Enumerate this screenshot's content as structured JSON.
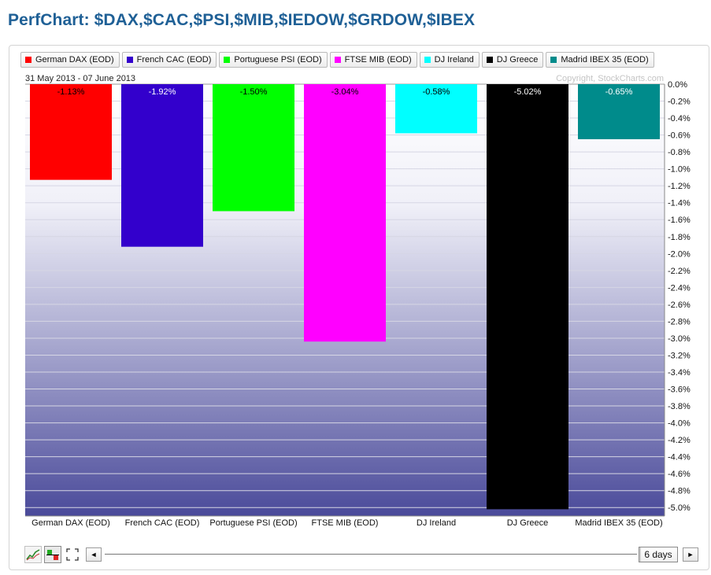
{
  "page": {
    "title": "PerfChart: $DAX,$CAC,$PSI,$MIB,$IEDOW,$GRDOW,$IBEX"
  },
  "legend": [
    {
      "label": "German DAX (EOD)",
      "color": "#ff0000"
    },
    {
      "label": "French CAC (EOD)",
      "color": "#3300cc"
    },
    {
      "label": "Portuguese PSI (EOD)",
      "color": "#00ff00"
    },
    {
      "label": "FTSE MIB (EOD)",
      "color": "#ff00ff"
    },
    {
      "label": "DJ Ireland",
      "color": "#00ffff"
    },
    {
      "label": "DJ Greece",
      "color": "#000000"
    },
    {
      "label": "Madrid IBEX 35 (EOD)",
      "color": "#008b8b"
    }
  ],
  "chart_data": {
    "type": "bar",
    "date_range": "31 May 2013 - 07 June 2013",
    "copyright": "Copyright, StockCharts.com",
    "categories": [
      "German DAX (EOD)",
      "French CAC (EOD)",
      "Portuguese PSI (EOD)",
      "FTSE MIB (EOD)",
      "DJ Ireland",
      "DJ Greece",
      "Madrid IBEX 35 (EOD)"
    ],
    "values": [
      -1.13,
      -1.92,
      -1.5,
      -3.04,
      -0.58,
      -5.02,
      -0.65
    ],
    "value_labels": [
      "-1.13%",
      "-1.92%",
      "-1.50%",
      "-3.04%",
      "-0.58%",
      "-5.02%",
      "-0.65%"
    ],
    "colors": [
      "#ff0000",
      "#3300cc",
      "#00ff00",
      "#ff00ff",
      "#00ffff",
      "#000000",
      "#008b8b"
    ],
    "label_colors": [
      "#000000",
      "#ffffff",
      "#000000",
      "#000000",
      "#000000",
      "#ffffff",
      "#ffffff"
    ],
    "y_ticks": [
      "0.0%",
      "-0.2%",
      "-0.4%",
      "-0.6%",
      "-0.8%",
      "-1.0%",
      "-1.2%",
      "-1.4%",
      "-1.6%",
      "-1.8%",
      "-2.0%",
      "-2.2%",
      "-2.4%",
      "-2.6%",
      "-2.8%",
      "-3.0%",
      "-3.2%",
      "-3.4%",
      "-3.6%",
      "-3.8%",
      "-4.0%",
      "-4.2%",
      "-4.4%",
      "-4.6%",
      "-4.8%",
      "-5.0%"
    ],
    "ylim": [
      -5.1,
      0
    ],
    "y_axis_side": "right",
    "grid": true,
    "xlabel": "",
    "ylabel": ""
  },
  "controls": {
    "period_label": "6 days",
    "scroll_left": "◄",
    "scroll_right": "►"
  },
  "icons": [
    "line-chart-icon",
    "bar-chart-icon",
    "fullscreen-icon"
  ]
}
